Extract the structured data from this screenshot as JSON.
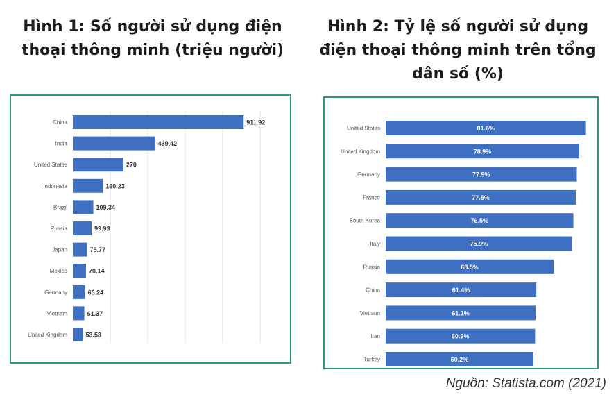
{
  "figure1": {
    "title": "Hình 1: Số người sử dụng điện thoại thông minh (triệu người)"
  },
  "figure2": {
    "title": "Hình 2: Tỷ lệ số người sử dụng điện thoại thông minh trên tổng dân số (%)"
  },
  "source": "Nguồn:  Statista.com (2021)",
  "colors": {
    "bar": "#3f6fc1",
    "frame": "#2f9a6e",
    "grid": "#e3e3e3",
    "label": "#555555",
    "value": "#333333",
    "inner_label": "#ffffff"
  },
  "chart_data": [
    {
      "type": "bar",
      "orientation": "horizontal",
      "title": "Hình 1: Số người sử dụng điện thoại thông minh (triệu người)",
      "categories": [
        "China",
        "India",
        "United States",
        "Indonesia",
        "Brazil",
        "Russia",
        "Japan",
        "Mexico",
        "Germany",
        "Vietnam",
        "United Kingdom"
      ],
      "values": [
        911.92,
        439.42,
        270,
        160.23,
        109.34,
        99.93,
        75.77,
        70.14,
        65.24,
        61.37,
        53.58
      ],
      "value_labels": [
        "911.92",
        "439.42",
        "270",
        "160.23",
        "109.34",
        "99.93",
        "75.77",
        "70.14",
        "65.24",
        "61.37",
        "53.58"
      ],
      "xlim": [
        0,
        1000
      ],
      "grid": true,
      "value_label_position": "outside"
    },
    {
      "type": "bar",
      "orientation": "horizontal",
      "title": "Hình 2: Tỷ lệ số người sử dụng điện thoại thông minh trên tổng dân số (%)",
      "categories": [
        "United States",
        "United Kingdom",
        "Germany",
        "France",
        "South Korea",
        "Italy",
        "Russia",
        "China",
        "Vietnam",
        "Iran",
        "Turkey"
      ],
      "values": [
        81.6,
        78.9,
        77.9,
        77.5,
        76.5,
        75.9,
        68.5,
        61.4,
        61.1,
        60.9,
        60.2
      ],
      "value_labels": [
        "81.6%",
        "78.9%",
        "77.9%",
        "77.5%",
        "76.5%",
        "75.9%",
        "68.5%",
        "61.4%",
        "61.1%",
        "60.9%",
        "60.2%"
      ],
      "xlim": [
        0,
        82
      ],
      "grid": false,
      "value_label_position": "inside"
    }
  ]
}
